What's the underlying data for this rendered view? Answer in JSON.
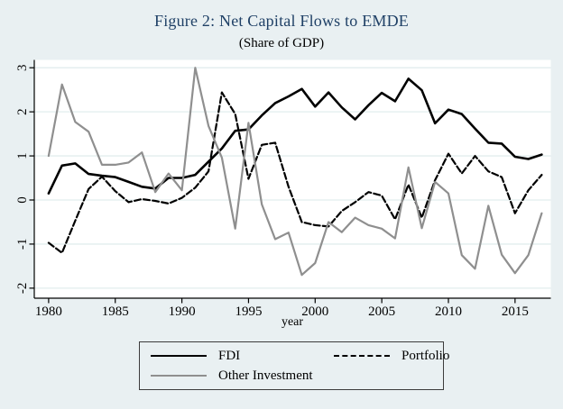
{
  "chart_data": {
    "type": "line",
    "title": "Figure 2: Net Capital Flows to EMDE",
    "subtitle": "(Share of GDP)",
    "xlabel": "year",
    "ylabel": "",
    "grid": true,
    "legend_position": "bottom",
    "xlim": [
      1978.9,
      2017.7
    ],
    "ylim": [
      -2.2,
      3.15
    ],
    "x_ticks": [
      1980,
      1985,
      1990,
      1995,
      2000,
      2005,
      2010,
      2015
    ],
    "y_ticks": [
      -2,
      -1,
      0,
      1,
      2,
      3
    ],
    "colors": {
      "background": "#e9f0f2",
      "plot_background": "#ffffff",
      "grid": "#e2edee",
      "axis": "#000000",
      "title": "#1f4066"
    },
    "x": [
      1980,
      1981,
      1982,
      1983,
      1984,
      1985,
      1986,
      1987,
      1988,
      1989,
      1990,
      1991,
      1992,
      1993,
      1994,
      1995,
      1996,
      1997,
      1998,
      1999,
      2000,
      2001,
      2002,
      2003,
      2004,
      2005,
      2006,
      2007,
      2008,
      2009,
      2010,
      2011,
      2012,
      2013,
      2014,
      2015,
      2016,
      2017
    ],
    "series": [
      {
        "id": "fdi",
        "name": "FDI",
        "style": "solid",
        "color": "#000000",
        "width": 2.6,
        "values": [
          0.15,
          0.78,
          0.83,
          0.59,
          0.55,
          0.52,
          0.41,
          0.3,
          0.26,
          0.5,
          0.5,
          0.57,
          0.87,
          1.17,
          1.57,
          1.6,
          1.92,
          2.2,
          2.35,
          2.52,
          2.12,
          2.44,
          2.1,
          1.83,
          2.15,
          2.43,
          2.24,
          2.75,
          2.49,
          1.74,
          2.05,
          1.95,
          1.62,
          1.3,
          1.28,
          0.98,
          0.93,
          1.03
        ]
      },
      {
        "id": "portfolio",
        "name": "Portfolio",
        "style": "dashed",
        "color": "#000000",
        "width": 2.2,
        "values": [
          -0.97,
          -1.2,
          -0.47,
          0.25,
          0.53,
          0.2,
          -0.05,
          0.02,
          -0.02,
          -0.08,
          0.05,
          0.28,
          0.65,
          2.44,
          1.95,
          0.48,
          1.25,
          1.3,
          0.3,
          -0.5,
          -0.57,
          -0.6,
          -0.25,
          -0.05,
          0.18,
          0.1,
          -0.44,
          0.35,
          -0.4,
          0.45,
          1.05,
          0.6,
          1.0,
          0.65,
          0.52,
          -0.3,
          0.22,
          0.57
        ]
      },
      {
        "id": "other-investment",
        "name": "Other Investment",
        "style": "solid",
        "color": "#8f8f8f",
        "width": 2.2,
        "values": [
          1.0,
          2.62,
          1.77,
          1.55,
          0.8,
          0.8,
          0.85,
          1.08,
          0.18,
          0.6,
          0.22,
          3.0,
          1.68,
          0.96,
          -0.65,
          1.75,
          -0.1,
          -0.89,
          -0.74,
          -1.7,
          -1.43,
          -0.5,
          -0.73,
          -0.4,
          -0.57,
          -0.65,
          -0.87,
          0.74,
          -0.64,
          0.41,
          0.15,
          -1.25,
          -1.56,
          -0.13,
          -1.24,
          -1.66,
          -1.25,
          -0.3
        ]
      }
    ]
  }
}
